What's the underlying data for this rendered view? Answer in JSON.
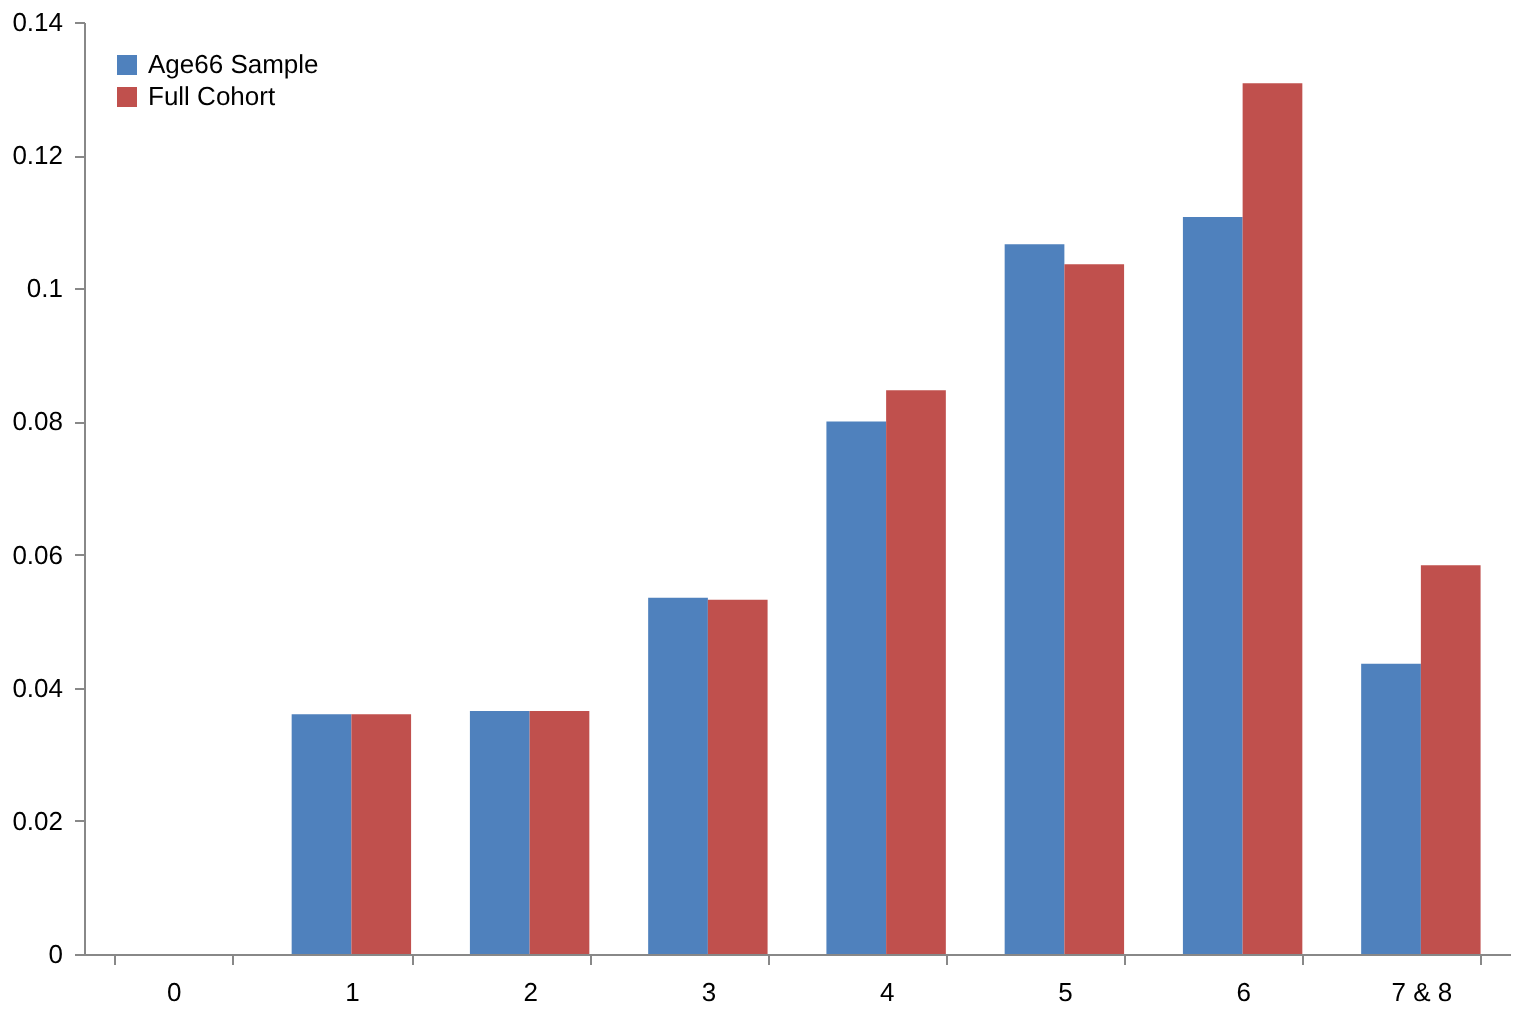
{
  "chart_data": {
    "type": "bar",
    "categories": [
      "0",
      "1",
      "2",
      "3",
      "4",
      "5",
      "6",
      "7 & 8"
    ],
    "series": [
      {
        "name": "Age66 Sample",
        "color": "#4f81bd",
        "values": [
          0,
          0.036,
          0.0365,
          0.0535,
          0.08,
          0.1066,
          0.1107,
          0.0436
        ]
      },
      {
        "name": "Full Cohort",
        "color": "#c0504d",
        "values": [
          0,
          0.036,
          0.0365,
          0.0532,
          0.0847,
          0.1036,
          0.1308,
          0.0584
        ]
      }
    ],
    "ylim": [
      0,
      0.14
    ],
    "yticks": [
      0,
      0.02,
      0.04,
      0.06,
      0.08,
      0.1,
      0.12,
      0.14
    ],
    "grid": false,
    "legend": "top left"
  }
}
